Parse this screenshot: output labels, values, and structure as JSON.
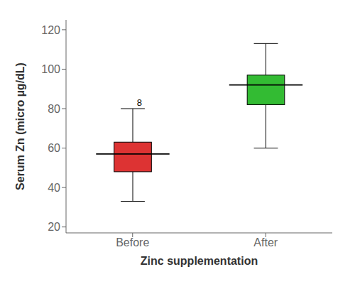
{
  "chart_data": {
    "type": "box",
    "categories": [
      "Before",
      "After"
    ],
    "boxes": [
      {
        "whislo": 33,
        "q1": 48,
        "med": 57,
        "q3": 63,
        "whishi": 80
      },
      {
        "whislo": 60,
        "q1": 82,
        "med": 92,
        "q3": 97,
        "whishi": 113
      }
    ],
    "colors": [
      "#dd3333",
      "#33bb33"
    ],
    "annotations": [
      {
        "text": "8",
        "category": "Before",
        "y": 80
      }
    ],
    "xlabel": "Zinc supplementation",
    "ylabel": "Serum Zn (micro µg/dL)",
    "ylim": [
      17,
      125
    ],
    "yticks": [
      20,
      40,
      60,
      80,
      100,
      120
    ],
    "grid": false
  }
}
